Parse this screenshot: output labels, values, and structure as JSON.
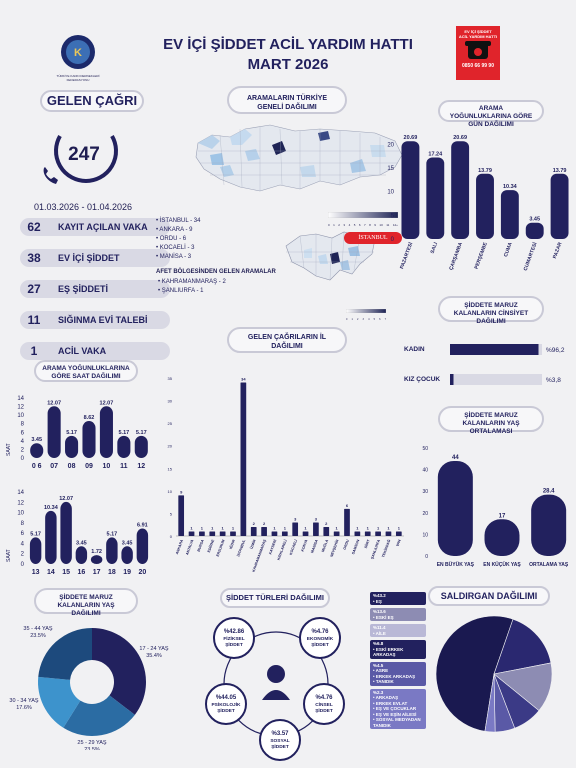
{
  "header": {
    "title_line1": "EV İÇİ ŞİDDET ACİL YARDIM HATTI",
    "title_line2": "MART 2026",
    "logo_left_caption": "TÜRKİYE KADIN DERNEKLERİ FEDERASYONU",
    "logo_right_text1": "EV İÇİ ŞİDDET",
    "logo_right_text2": "ACİL YARDIM HATTI",
    "logo_right_phone": "0850 66 99 90"
  },
  "calls": {
    "title": "GELEN ÇAĞRI",
    "total": "247",
    "date_range": "01.03.2026 - 01.04.2026",
    "stats": [
      {
        "value": "62",
        "label": "KAYIT AÇILAN VAKA"
      },
      {
        "value": "38",
        "label": "EV İÇİ ŞİDDET"
      },
      {
        "value": "27",
        "label": "EŞ ŞİDDETİ"
      },
      {
        "value": "11",
        "label": "SIĞINMA EVİ TALEBİ"
      },
      {
        "value": "1",
        "label": "ACİL VAKA"
      }
    ]
  },
  "map": {
    "title": "ARAMALARIN TÜRKİYE GENELİ DAĞILIMI",
    "legend_ticks": [
      "0",
      "1",
      "2",
      "3",
      "4",
      "5",
      "6",
      "7",
      "8",
      "9",
      "10",
      "11",
      "12+"
    ],
    "istanbul_label": "İSTANBUL",
    "istanbul_legend_ticks": [
      "0",
      "1",
      "2",
      "3",
      "4",
      "5",
      "6",
      "7"
    ],
    "cities": [
      "İSTANBUL - 34",
      "ANKARA - 9",
      "ORDU - 6",
      "KOCAELİ - 3",
      "MANİSA - 3"
    ],
    "afet_title": "AFET BÖLGESİNDEN GELEN ARAMALAR",
    "afet_cities": [
      "KAHRAMANMARAŞ - 2",
      "ŞANLIURFA - 1"
    ]
  },
  "colors": {
    "navy": "#22215e",
    "light": "#d9d9e4",
    "accent_red": "#e0242b"
  },
  "chart_data": [
    {
      "id": "weekday",
      "type": "bar",
      "title": "ARAMA YOĞUNLUKLARINA GÖRE GÜN DAĞILIMI",
      "categories": [
        "PAZARTESİ",
        "SALI",
        "ÇARŞAMBA",
        "PERŞEMBE",
        "CUMA",
        "CUMARTESİ",
        "PAZAR"
      ],
      "values": [
        20.69,
        17.24,
        20.69,
        13.79,
        10.34,
        3.45,
        13.79
      ],
      "value_labels": [
        "20.69",
        "17.24",
        "20.69",
        "13.79",
        "10.34",
        "3.45",
        "13.79"
      ],
      "yticks": [
        "0",
        "5",
        "10",
        "15",
        "20"
      ],
      "ylim": [
        0,
        22
      ]
    },
    {
      "id": "hours1",
      "type": "bar",
      "title": "ARAMA YOĞUNLUKLARINA GÖRE SAAT DAĞILIMI",
      "categories": [
        "0 6",
        "07",
        "08",
        "09",
        "10",
        "11",
        "12"
      ],
      "values": [
        3.45,
        12.07,
        5.17,
        8.62,
        12.07,
        5.17,
        5.17
      ],
      "value_labels": [
        "3.45",
        "12.07",
        "5.17",
        "8.62",
        "12.07",
        "5.17",
        "5.17"
      ],
      "yticks": [
        "0",
        "2",
        "4",
        "6",
        "8",
        "10",
        "12",
        "14"
      ],
      "ylim": [
        0,
        14
      ],
      "ylabel": "SAAT"
    },
    {
      "id": "hours2",
      "type": "bar",
      "categories": [
        "13",
        "14",
        "15",
        "16",
        "17",
        "18",
        "19",
        "20"
      ],
      "values": [
        5.17,
        10.34,
        12.07,
        3.45,
        1.72,
        5.17,
        3.45,
        6.91
      ],
      "value_labels": [
        "5.17",
        "10.34",
        "12.07",
        "3.45",
        "1.72",
        "5.17",
        "3.45",
        "6.91"
      ],
      "yticks": [
        "0",
        "2",
        "4",
        "6",
        "8",
        "10",
        "12",
        "14"
      ],
      "ylim": [
        0,
        14
      ],
      "ylabel": "SAAT"
    },
    {
      "id": "provinces",
      "type": "bar",
      "title": "GELEN ÇAĞRILARIN İL DAĞILIMI",
      "categories": [
        "ANKARA",
        "ANTALYA",
        "BURSA",
        "EDİRNE",
        "ERZURUM",
        "IĞDIR",
        "İSTANBUL",
        "İZMİR",
        "KAHRAMANMARAŞ",
        "KAYSERİ",
        "KIRKLARELİ",
        "KOCAELİ",
        "KONYA",
        "MANİSA",
        "MUĞLA",
        "NEVŞEHİR",
        "ORDU",
        "SAMSUN",
        "SİİRT",
        "ŞANLIURFA",
        "TEKİRDAĞ",
        "VAN"
      ],
      "values": [
        9,
        1,
        1,
        1,
        1,
        1,
        34,
        2,
        2,
        1,
        1,
        3,
        1,
        3,
        2,
        1,
        6,
        1,
        1,
        1,
        1,
        1
      ],
      "yticks": [
        "0",
        "5",
        "10",
        "15",
        "20",
        "25",
        "30",
        "35"
      ],
      "ylim": [
        0,
        35
      ]
    },
    {
      "id": "gender",
      "type": "bar",
      "title": "ŞİDDETE MARUZ KALANLARIN CİNSİYET DAĞILIMI",
      "categories": [
        "KADIN",
        "KIZ ÇOCUK"
      ],
      "values": [
        96.2,
        3.8
      ],
      "value_labels": [
        "%96,2",
        "%3,8"
      ]
    },
    {
      "id": "age_avg",
      "type": "bar",
      "title": "ŞİDDETE MARUZ KALANLARIN YAŞ ORTALAMASI",
      "categories": [
        "EN BÜYÜK YAŞ",
        "EN KÜÇÜK YAŞ",
        "ORTALAMA YAŞ"
      ],
      "values": [
        44,
        17,
        28.4
      ],
      "value_labels": [
        "44",
        "17",
        "28.4"
      ],
      "yticks": [
        "0",
        "10",
        "20",
        "30",
        "40",
        "50"
      ],
      "ylim": [
        0,
        50
      ]
    },
    {
      "id": "age_dist",
      "type": "pie",
      "title": "ŞİDDETE MARUZ KALANLARIN YAŞ DAĞILIMI",
      "categories": [
        "17 - 24 YAŞ",
        "25 - 29 YAŞ",
        "30 - 34 YAŞ",
        "35 - 44 YAŞ"
      ],
      "values": [
        35.4,
        23.5,
        17.6,
        23.5
      ],
      "value_labels": [
        "35.4%",
        "23.5%",
        "17.6%",
        "23.5%"
      ],
      "colors": [
        "#22215e",
        "#2b6ca3",
        "#3d93cc",
        "#1d4a7d"
      ]
    },
    {
      "id": "violence_types",
      "type": "pie",
      "title": "ŞİDDET TÜRLERİ DAĞILIMI",
      "categories": [
        "FİZİKSEL ŞİDDET",
        "EKONOMİK ŞİDDET",
        "CİNSEL ŞİDDET",
        "SOSYAL ŞİDDET",
        "PSİKOLOJİK ŞİDDET"
      ],
      "values": [
        42.86,
        4.76,
        4.76,
        3.57,
        44.05
      ],
      "value_labels": [
        "%42.86",
        "%4.76",
        "%4.76",
        "%3.57",
        "%44.05"
      ]
    },
    {
      "id": "perpetrator",
      "type": "pie",
      "title": "SALDIRGAN DAĞILIMI",
      "categories": [
        "EŞ",
        "ESKİ EŞ",
        "AİLE",
        "ESKİ ERKEK ARKADAŞ",
        "ASRE, ERKEK ARKADAŞ, TANIDIK",
        "ARKADAŞ, ERKEK EVLAT, EŞ VE ÇOCUKLAR, EŞ VE EŞİN AİLESİ, SOSYAL MEDYADAN TANIDIK"
      ],
      "values": [
        43.2,
        13.6,
        11.4,
        6.8,
        4.5,
        2.3
      ],
      "value_labels": [
        "%43.2",
        "%13.6",
        "%11.4",
        "%6.8",
        "%4.5",
        "%2.3"
      ],
      "colors": [
        "#1a1950",
        "#2a2870",
        "#8d8cb3",
        "#3b3a86",
        "#5a59a6",
        "#7a79c4"
      ]
    }
  ]
}
